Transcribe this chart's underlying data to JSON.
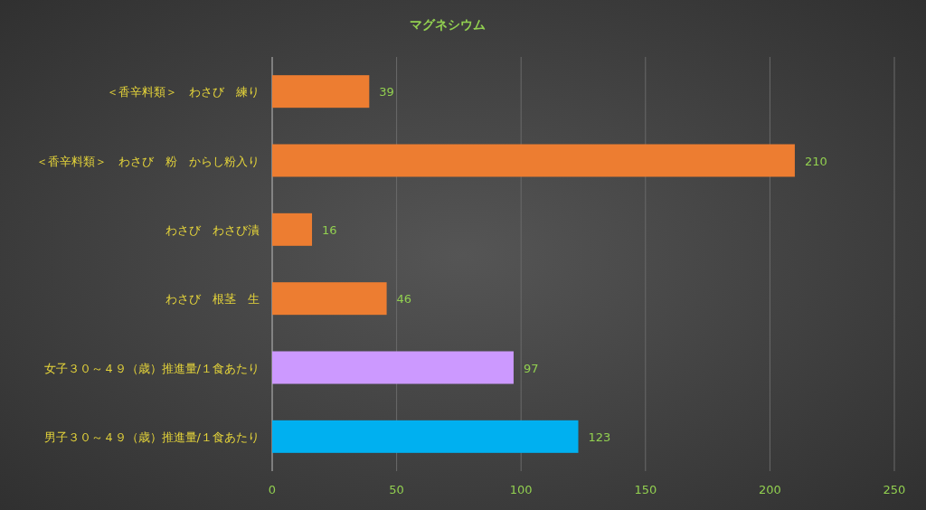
{
  "chart_data": {
    "type": "bar",
    "orientation": "horizontal",
    "title": "マグネシウム",
    "categories": [
      "＜香辛料類＞　わさび　練り",
      "＜香辛料類＞　わさび　粉　からし粉入り",
      "わさび　わさび漬",
      "わさび　根茎　生",
      "女子３０～４９（歳）推進量/１食あたり",
      "男子３０～４９（歳）推進量/１食あたり"
    ],
    "values": [
      39,
      210,
      16,
      46,
      97,
      123
    ],
    "colors": [
      "#ed7d31",
      "#ed7d31",
      "#ed7d31",
      "#ed7d31",
      "#cc99ff",
      "#00b0f0"
    ],
    "xlim": [
      0,
      250
    ],
    "xticks": [
      0,
      50,
      100,
      150,
      200,
      250
    ],
    "grid": "x",
    "data_labels": true
  }
}
